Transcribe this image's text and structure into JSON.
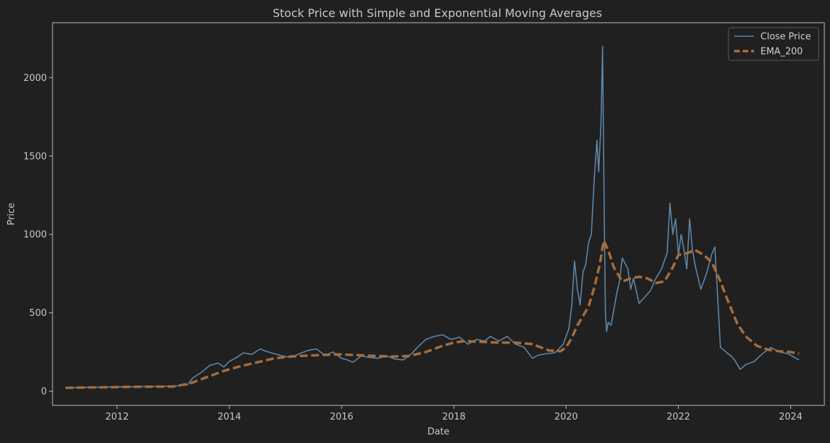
{
  "chart_data": {
    "type": "line",
    "title": "Stock Price with Simple and Exponential Moving Averages",
    "xlabel": "Date",
    "ylabel": "Price",
    "xlim": [
      2010.85,
      2024.6
    ],
    "ylim": [
      -90,
      2350
    ],
    "x_ticks": [
      2012,
      2014,
      2016,
      2018,
      2020,
      2022,
      2024
    ],
    "y_ticks": [
      0,
      500,
      1000,
      1500,
      2000
    ],
    "grid": false,
    "legend_position": "top-right",
    "background": "#202020",
    "series": [
      {
        "name": "Close Price",
        "color": "#5f86a8",
        "style": "solid",
        "x": [
          2011.08,
          2011.5,
          2012.0,
          2012.5,
          2013.0,
          2013.25,
          2013.35,
          2013.5,
          2013.65,
          2013.8,
          2013.9,
          2014.0,
          2014.15,
          2014.25,
          2014.4,
          2014.55,
          2014.65,
          2014.8,
          2014.95,
          2015.1,
          2015.25,
          2015.4,
          2015.55,
          2015.7,
          2015.85,
          2016.0,
          2016.1,
          2016.2,
          2016.35,
          2016.5,
          2016.65,
          2016.8,
          2016.95,
          2017.1,
          2017.25,
          2017.35,
          2017.5,
          2017.65,
          2017.8,
          2017.95,
          2018.1,
          2018.25,
          2018.4,
          2018.55,
          2018.65,
          2018.8,
          2018.95,
          2019.1,
          2019.25,
          2019.4,
          2019.5,
          2019.65,
          2019.8,
          2019.95,
          2020.05,
          2020.1,
          2020.15,
          2020.2,
          2020.25,
          2020.3,
          2020.35,
          2020.4,
          2020.45,
          2020.5,
          2020.55,
          2020.58,
          2020.62,
          2020.65,
          2020.68,
          2020.7,
          2020.72,
          2020.75,
          2020.8,
          2020.9,
          2020.95,
          2021.0,
          2021.1,
          2021.15,
          2021.2,
          2021.3,
          2021.4,
          2021.5,
          2021.6,
          2021.7,
          2021.8,
          2021.85,
          2021.9,
          2021.95,
          2022.0,
          2022.05,
          2022.1,
          2022.15,
          2022.2,
          2022.25,
          2022.3,
          2022.4,
          2022.5,
          2022.6,
          2022.65,
          2022.7,
          2022.75,
          2022.85,
          2022.95,
          2023.0,
          2023.1,
          2023.2,
          2023.35,
          2023.5,
          2023.65,
          2023.8,
          2023.95,
          2024.05,
          2024.15
        ],
        "y": [
          22,
          25,
          28,
          30,
          32,
          40,
          85,
          120,
          165,
          180,
          155,
          190,
          220,
          245,
          235,
          270,
          255,
          240,
          225,
          215,
          240,
          260,
          270,
          230,
          250,
          210,
          200,
          185,
          225,
          215,
          210,
          225,
          205,
          200,
          240,
          280,
          330,
          350,
          360,
          330,
          345,
          300,
          330,
          320,
          350,
          320,
          350,
          300,
          280,
          210,
          230,
          240,
          245,
          300,
          400,
          550,
          830,
          650,
          550,
          760,
          810,
          950,
          1000,
          1350,
          1600,
          1400,
          1700,
          2200,
          1100,
          500,
          380,
          440,
          420,
          620,
          700,
          850,
          780,
          650,
          720,
          560,
          600,
          640,
          720,
          780,
          880,
          1200,
          1000,
          1100,
          870,
          1000,
          900,
          780,
          1100,
          900,
          800,
          650,
          750,
          880,
          920,
          600,
          280,
          250,
          220,
          200,
          140,
          170,
          190,
          240,
          280,
          250,
          240,
          220,
          200
        ]
      },
      {
        "name": "EMA_200",
        "color": "#a66d3c",
        "style": "dashed",
        "x": [
          2011.08,
          2011.5,
          2012.0,
          2012.5,
          2013.0,
          2013.3,
          2013.6,
          2013.9,
          2014.2,
          2014.5,
          2014.8,
          2015.1,
          2015.4,
          2015.7,
          2016.0,
          2016.3,
          2016.6,
          2016.9,
          2017.2,
          2017.5,
          2017.8,
          2018.0,
          2018.2,
          2018.5,
          2018.8,
          2019.1,
          2019.4,
          2019.7,
          2019.9,
          2020.0,
          2020.1,
          2020.2,
          2020.3,
          2020.4,
          2020.5,
          2020.6,
          2020.67,
          2020.75,
          2020.85,
          2021.0,
          2021.15,
          2021.3,
          2021.45,
          2021.6,
          2021.75,
          2021.9,
          2022.0,
          2022.15,
          2022.3,
          2022.45,
          2022.6,
          2022.75,
          2022.9,
          2023.05,
          2023.2,
          2023.4,
          2023.6,
          2023.8,
          2024.0,
          2024.15
        ],
        "y": [
          22,
          24,
          27,
          29,
          30,
          50,
          90,
          130,
          160,
          185,
          210,
          222,
          228,
          232,
          235,
          230,
          225,
          222,
          225,
          250,
          290,
          310,
          320,
          315,
          310,
          310,
          300,
          260,
          255,
          280,
          340,
          420,
          480,
          540,
          660,
          810,
          960,
          900,
          790,
          700,
          720,
          730,
          720,
          690,
          700,
          790,
          870,
          880,
          900,
          870,
          820,
          700,
          560,
          430,
          350,
          290,
          265,
          255,
          250,
          240
        ]
      }
    ]
  }
}
